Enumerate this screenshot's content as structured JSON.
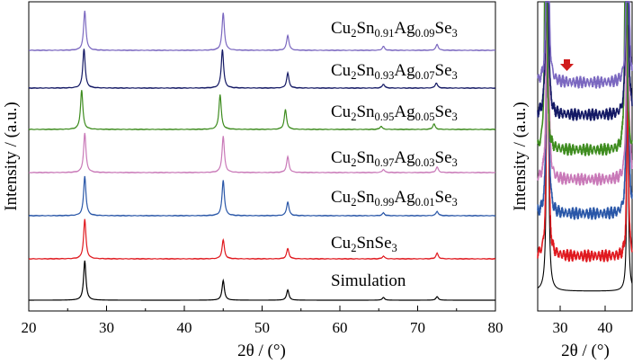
{
  "chart_data": [
    {
      "type": "line",
      "panel": "main",
      "xlabel": "2θ / (°)",
      "ylabel": "Intensity / (a.u.)",
      "xlim": [
        20,
        80
      ],
      "xticks": [
        20,
        30,
        40,
        50,
        60,
        70,
        80
      ],
      "peak_positions_2theta": [
        27.2,
        45.0,
        53.3,
        65.6,
        72.5
      ],
      "series": [
        {
          "name": "Simulation",
          "color": "#000000",
          "offset": 0,
          "peak_heights": [
            1.0,
            0.5,
            0.26,
            0.07,
            0.09
          ],
          "peak_x": [
            27.2,
            45.0,
            53.3,
            65.6,
            72.5
          ]
        },
        {
          "name": "Cu2SnSe3",
          "color": "#e0191f",
          "offset": 1,
          "peak_heights": [
            1.0,
            0.48,
            0.26,
            0.07,
            0.14
          ],
          "peak_x": [
            27.2,
            45.0,
            53.3,
            65.6,
            72.5
          ]
        },
        {
          "name": "Cu2Sn0.99Ag0.01Se3",
          "color": "#2a57a8",
          "offset": 2,
          "peak_heights": [
            1.0,
            0.9,
            0.35,
            0.07,
            0.11
          ],
          "peak_x": [
            27.2,
            45.0,
            53.3,
            65.6,
            72.5
          ]
        },
        {
          "name": "Cu2Sn0.97Ag0.03Se3",
          "color": "#c979b8",
          "offset": 3,
          "peak_heights": [
            1.0,
            0.92,
            0.4,
            0.08,
            0.14
          ],
          "peak_x": [
            27.2,
            45.0,
            53.3,
            65.6,
            72.5
          ]
        },
        {
          "name": "Cu2Sn0.95Ag0.05Se3",
          "color": "#3e8c1f",
          "offset": 4,
          "peak_heights": [
            1.0,
            0.88,
            0.5,
            0.08,
            0.14
          ],
          "peak_x": [
            26.8,
            44.6,
            53.0,
            65.3,
            72.1
          ]
        },
        {
          "name": "Cu2Sn0.93Ag0.07Se3",
          "color": "#141965",
          "offset": 5,
          "peak_heights": [
            1.0,
            0.98,
            0.38,
            0.1,
            0.13
          ],
          "peak_x": [
            27.1,
            44.9,
            53.3,
            65.6,
            72.4
          ]
        },
        {
          "name": "Cu2Sn0.91Ag0.09Se3",
          "color": "#7b68c0",
          "offset": 6,
          "peak_heights": [
            1.0,
            0.95,
            0.38,
            0.1,
            0.15
          ],
          "peak_x": [
            27.2,
            45.0,
            53.3,
            65.6,
            72.5
          ]
        }
      ]
    },
    {
      "type": "line",
      "panel": "inset-zoom",
      "xlabel": "2θ / (°)",
      "xlim": [
        25,
        46
      ],
      "xticks": [
        30,
        40
      ],
      "annotation": "red arrow marking weak impurity peak near 2θ ≈ 31°",
      "arrow_color": "#d01c1c"
    }
  ],
  "labels": {
    "xlabel_main": "2θ / (°)",
    "xlabel_inset": "2θ / (°)",
    "ylabel_main": "Intensity / (a.u.)",
    "ylabel_inset": "Intensity / (a.u.)",
    "ticks_main": [
      "20",
      "30",
      "40",
      "50",
      "60",
      "70",
      "80"
    ],
    "ticks_inset": [
      "30",
      "40"
    ],
    "simulation": "Simulation"
  }
}
